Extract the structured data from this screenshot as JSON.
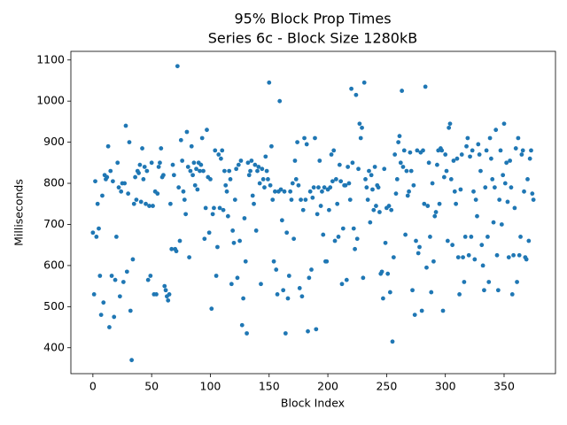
{
  "chart_data": {
    "type": "scatter",
    "title": "95% Block Prop Times",
    "subtitle": "Series 6c - Block Size 1280kB",
    "x_label": "Block Index",
    "y_label": "Milliseconds",
    "color": "#1f77b4",
    "xlim": [
      -18.75,
      393.75
    ],
    "xticks": [
      0,
      50,
      100,
      150,
      200,
      250,
      300,
      350
    ],
    "ylim": [
      337,
      1121
    ],
    "yticks": [
      400,
      500,
      600,
      700,
      800,
      900,
      1000,
      1100
    ],
    "x": [
      0,
      1,
      2,
      3,
      4,
      5,
      6,
      7,
      8,
      9,
      10,
      11,
      12,
      13,
      14,
      15,
      16,
      17,
      18,
      19,
      20,
      21,
      22,
      23,
      24,
      25,
      26,
      27,
      28,
      29,
      30,
      31,
      32,
      33,
      34,
      35,
      36,
      37,
      38,
      39,
      40,
      41,
      42,
      43,
      44,
      45,
      46,
      47,
      48,
      49,
      50,
      51,
      52,
      53,
      54,
      55,
      56,
      57,
      58,
      59,
      60,
      61,
      62,
      63,
      64,
      65,
      66,
      67,
      68,
      69,
      70,
      71,
      72,
      73,
      74,
      75,
      76,
      77,
      78,
      79,
      80,
      81,
      82,
      83,
      84,
      85,
      86,
      87,
      88,
      89,
      90,
      91,
      92,
      93,
      94,
      95,
      96,
      97,
      98,
      99,
      100,
      101,
      102,
      103,
      104,
      105,
      106,
      107,
      108,
      109,
      110,
      111,
      112,
      113,
      114,
      115,
      116,
      117,
      118,
      119,
      120,
      121,
      122,
      123,
      124,
      125,
      126,
      127,
      128,
      129,
      130,
      131,
      132,
      133,
      134,
      135,
      136,
      137,
      138,
      139,
      140,
      141,
      142,
      143,
      144,
      145,
      146,
      147,
      148,
      149,
      150,
      151,
      152,
      153,
      154,
      155,
      156,
      157,
      158,
      159,
      160,
      161,
      162,
      163,
      164,
      165,
      166,
      167,
      168,
      169,
      170,
      171,
      172,
      173,
      174,
      175,
      176,
      177,
      178,
      179,
      180,
      181,
      182,
      183,
      184,
      185,
      186,
      187,
      188,
      189,
      190,
      191,
      192,
      193,
      194,
      195,
      196,
      197,
      198,
      199,
      200,
      201,
      202,
      203,
      204,
      205,
      206,
      207,
      208,
      209,
      210,
      211,
      212,
      213,
      214,
      215,
      216,
      217,
      218,
      219,
      220,
      221,
      222,
      223,
      224,
      225,
      226,
      227,
      228,
      229,
      230,
      231,
      232,
      233,
      234,
      235,
      236,
      237,
      238,
      239,
      240,
      241,
      242,
      243,
      244,
      245,
      246,
      247,
      248,
      249,
      250,
      251,
      252,
      253,
      254,
      255,
      256,
      257,
      258,
      259,
      260,
      261,
      262,
      263,
      264,
      265,
      266,
      267,
      268,
      269,
      270,
      271,
      272,
      273,
      274,
      275,
      276,
      277,
      278,
      279,
      280,
      281,
      282,
      283,
      284,
      285,
      286,
      287,
      288,
      289,
      290,
      291,
      292,
      293,
      294,
      295,
      296,
      297,
      298,
      299,
      300,
      301,
      302,
      303,
      304,
      305,
      306,
      307,
      308,
      309,
      310,
      311,
      312,
      313,
      314,
      315,
      316,
      317,
      318,
      319,
      320,
      321,
      322,
      323,
      324,
      325,
      326,
      327,
      328,
      329,
      330,
      331,
      332,
      333,
      334,
      335,
      336,
      337,
      338,
      339,
      340,
      341,
      342,
      343,
      344,
      345,
      346,
      347,
      348,
      349,
      350,
      351,
      352,
      353,
      354,
      355,
      356,
      357,
      358,
      359,
      360,
      361,
      362,
      363,
      364,
      365,
      366,
      367,
      368,
      369,
      370,
      371,
      372,
      373,
      374,
      375
    ],
    "values": [
      680,
      530,
      805,
      670,
      750,
      690,
      575,
      480,
      770,
      510,
      820,
      810,
      815,
      890,
      450,
      830,
      575,
      805,
      475,
      565,
      670,
      850,
      790,
      525,
      780,
      800,
      560,
      800,
      940,
      585,
      775,
      900,
      490,
      370,
      615,
      750,
      815,
      760,
      830,
      825,
      845,
      755,
      885,
      810,
      840,
      750,
      830,
      565,
      745,
      575,
      850,
      745,
      530,
      780,
      530,
      775,
      840,
      850,
      885,
      815,
      820,
      550,
      540,
      525,
      515,
      530,
      750,
      640,
      845,
      820,
      640,
      635,
      1085,
      790,
      660,
      905,
      855,
      780,
      760,
      725,
      925,
      840,
      620,
      830,
      890,
      820,
      850,
      795,
      835,
      785,
      850,
      830,
      845,
      910,
      830,
      665,
      740,
      930,
      815,
      680,
      810,
      495,
      725,
      740,
      880,
      575,
      645,
      870,
      740,
      860,
      880,
      735,
      830,
      795,
      780,
      720,
      830,
      810,
      555,
      685,
      655,
      760,
      835,
      570,
      845,
      660,
      855,
      455,
      520,
      715,
      610,
      435,
      850,
      820,
      830,
      855,
      770,
      750,
      845,
      685,
      830,
      840,
      800,
      555,
      835,
      810,
      790,
      865,
      830,
      810,
      1045,
      795,
      890,
      760,
      610,
      780,
      590,
      530,
      780,
      1000,
      785,
      710,
      540,
      780,
      435,
      680,
      520,
      575,
      780,
      760,
      800,
      665,
      855,
      810,
      900,
      795,
      545,
      760,
      525,
      735,
      910,
      760,
      895,
      440,
      570,
      780,
      590,
      765,
      790,
      910,
      445,
      725,
      790,
      855,
      745,
      780,
      675,
      790,
      610,
      610,
      785,
      735,
      790,
      870,
      805,
      880,
      660,
      810,
      750,
      670,
      845,
      805,
      555,
      690,
      795,
      795,
      565,
      840,
      800,
      760,
      1030,
      850,
      690,
      640,
      1015,
      665,
      835,
      945,
      910,
      935,
      570,
      1045,
      810,
      790,
      760,
      830,
      705,
      820,
      785,
      735,
      840,
      745,
      795,
      790,
      730,
      580,
      585,
      520,
      835,
      655,
      740,
      580,
      745,
      535,
      735,
      415,
      620,
      870,
      775,
      810,
      900,
      915,
      850,
      1025,
      840,
      880,
      675,
      830,
      770,
      780,
      875,
      830,
      540,
      795,
      480,
      660,
      880,
      630,
      645,
      875,
      490,
      880,
      750,
      1035,
      595,
      745,
      850,
      670,
      535,
      800,
      610,
      720,
      730,
      845,
      880,
      750,
      885,
      880,
      490,
      815,
      870,
      830,
      660,
      935,
      945,
      810,
      650,
      855,
      780,
      750,
      860,
      620,
      530,
      785,
      870,
      620,
      560,
      670,
      890,
      910,
      625,
      865,
      670,
      880,
      780,
      615,
      760,
      720,
      895,
      870,
      830,
      650,
      600,
      540,
      790,
      880,
      670,
      560,
      910,
      860,
      810,
      705,
      790,
      930,
      625,
      540,
      760,
      880,
      700,
      820,
      945,
      800,
      850,
      755,
      620,
      855,
      790,
      530,
      625,
      740,
      885,
      560,
      910,
      625,
      670,
      870,
      880,
      780,
      620,
      615,
      810,
      660,
      860,
      880,
      775,
      760
    ]
  }
}
